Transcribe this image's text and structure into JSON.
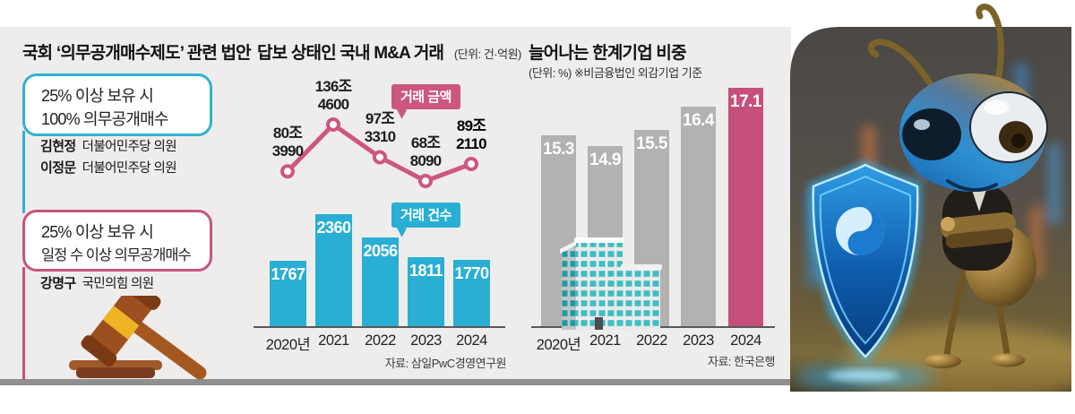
{
  "canvas": {
    "panel_bg": "#eeedec",
    "divider_color": "#8f8f8f"
  },
  "left_panel": {
    "title": "국회 ‘의무공개매수제도’ 관련 법안",
    "bubble1": {
      "line1": "25% 이상 보유 시",
      "line2": "100% 의무공개매수",
      "border_color": "#2db3d5"
    },
    "bubble1_sponsors": [
      {
        "name": "김현정",
        "party": "더불어민주당 의원"
      },
      {
        "name": "이정문",
        "party": "더불어민주당 의원"
      }
    ],
    "bubble2": {
      "line1": "25% 이상 보유 시",
      "line2": "일정 수 이상 의무공개매수",
      "border_color": "#c7537c"
    },
    "bubble2_sponsors": [
      {
        "name": "강명구",
        "party": "국민의힘 의원"
      }
    ]
  },
  "ma_panel": {
    "title": "답보 상태인 국내 M&A 거래",
    "unit": "(단위: 건·억원)",
    "source": "자료: 삼일PwC경영연구원"
  },
  "limit_panel": {
    "title": "늘어나는 한계기업 비중",
    "unit_note": "(단위: %)  ※비금융법인 외감기업 기준",
    "source": "자료: 한국은행"
  },
  "chart_data": [
    {
      "id": "ma_amount",
      "type": "line",
      "title": "거래 금액",
      "categories": [
        "2020년",
        "2021",
        "2022",
        "2023",
        "2024"
      ],
      "values": [
        80.399,
        136.46,
        97.331,
        68.809,
        89.211
      ],
      "point_labels": [
        [
          "80조",
          "3990"
        ],
        [
          "136조",
          "4600"
        ],
        [
          "97조",
          "3310"
        ],
        [
          "68조",
          "8090"
        ],
        [
          "89조",
          "2110"
        ]
      ],
      "emphasis": [
        false,
        false,
        false,
        false,
        true
      ],
      "color": "#cd5680",
      "marker_fill": "#ffffff",
      "grid": false,
      "legend_position": "badge-above-line"
    },
    {
      "id": "ma_count",
      "type": "bar",
      "title": "거래 건수",
      "categories": [
        "2020년",
        "2021",
        "2022",
        "2023",
        "2024"
      ],
      "values": [
        1767,
        2360,
        2056,
        1811,
        1770
      ],
      "color": "#29afd3",
      "label_color": "#ffffff",
      "ylim": [
        900,
        2360
      ],
      "grid": false,
      "legend_position": "badge-above-bars"
    },
    {
      "id": "limit_share",
      "type": "bar",
      "title": "늘어나는 한계기업 비중",
      "categories": [
        "2020년",
        "2021",
        "2022",
        "2023",
        "2024"
      ],
      "values": [
        15.3,
        14.9,
        15.5,
        16.4,
        17.1
      ],
      "bar_colors": [
        "#b3b2b1",
        "#b3b2b1",
        "#b3b2b1",
        "#b3b2b1",
        "#c64f7b"
      ],
      "label_color": "#ffffff",
      "ylim": [
        8,
        17.1
      ],
      "grid": false
    }
  ]
}
